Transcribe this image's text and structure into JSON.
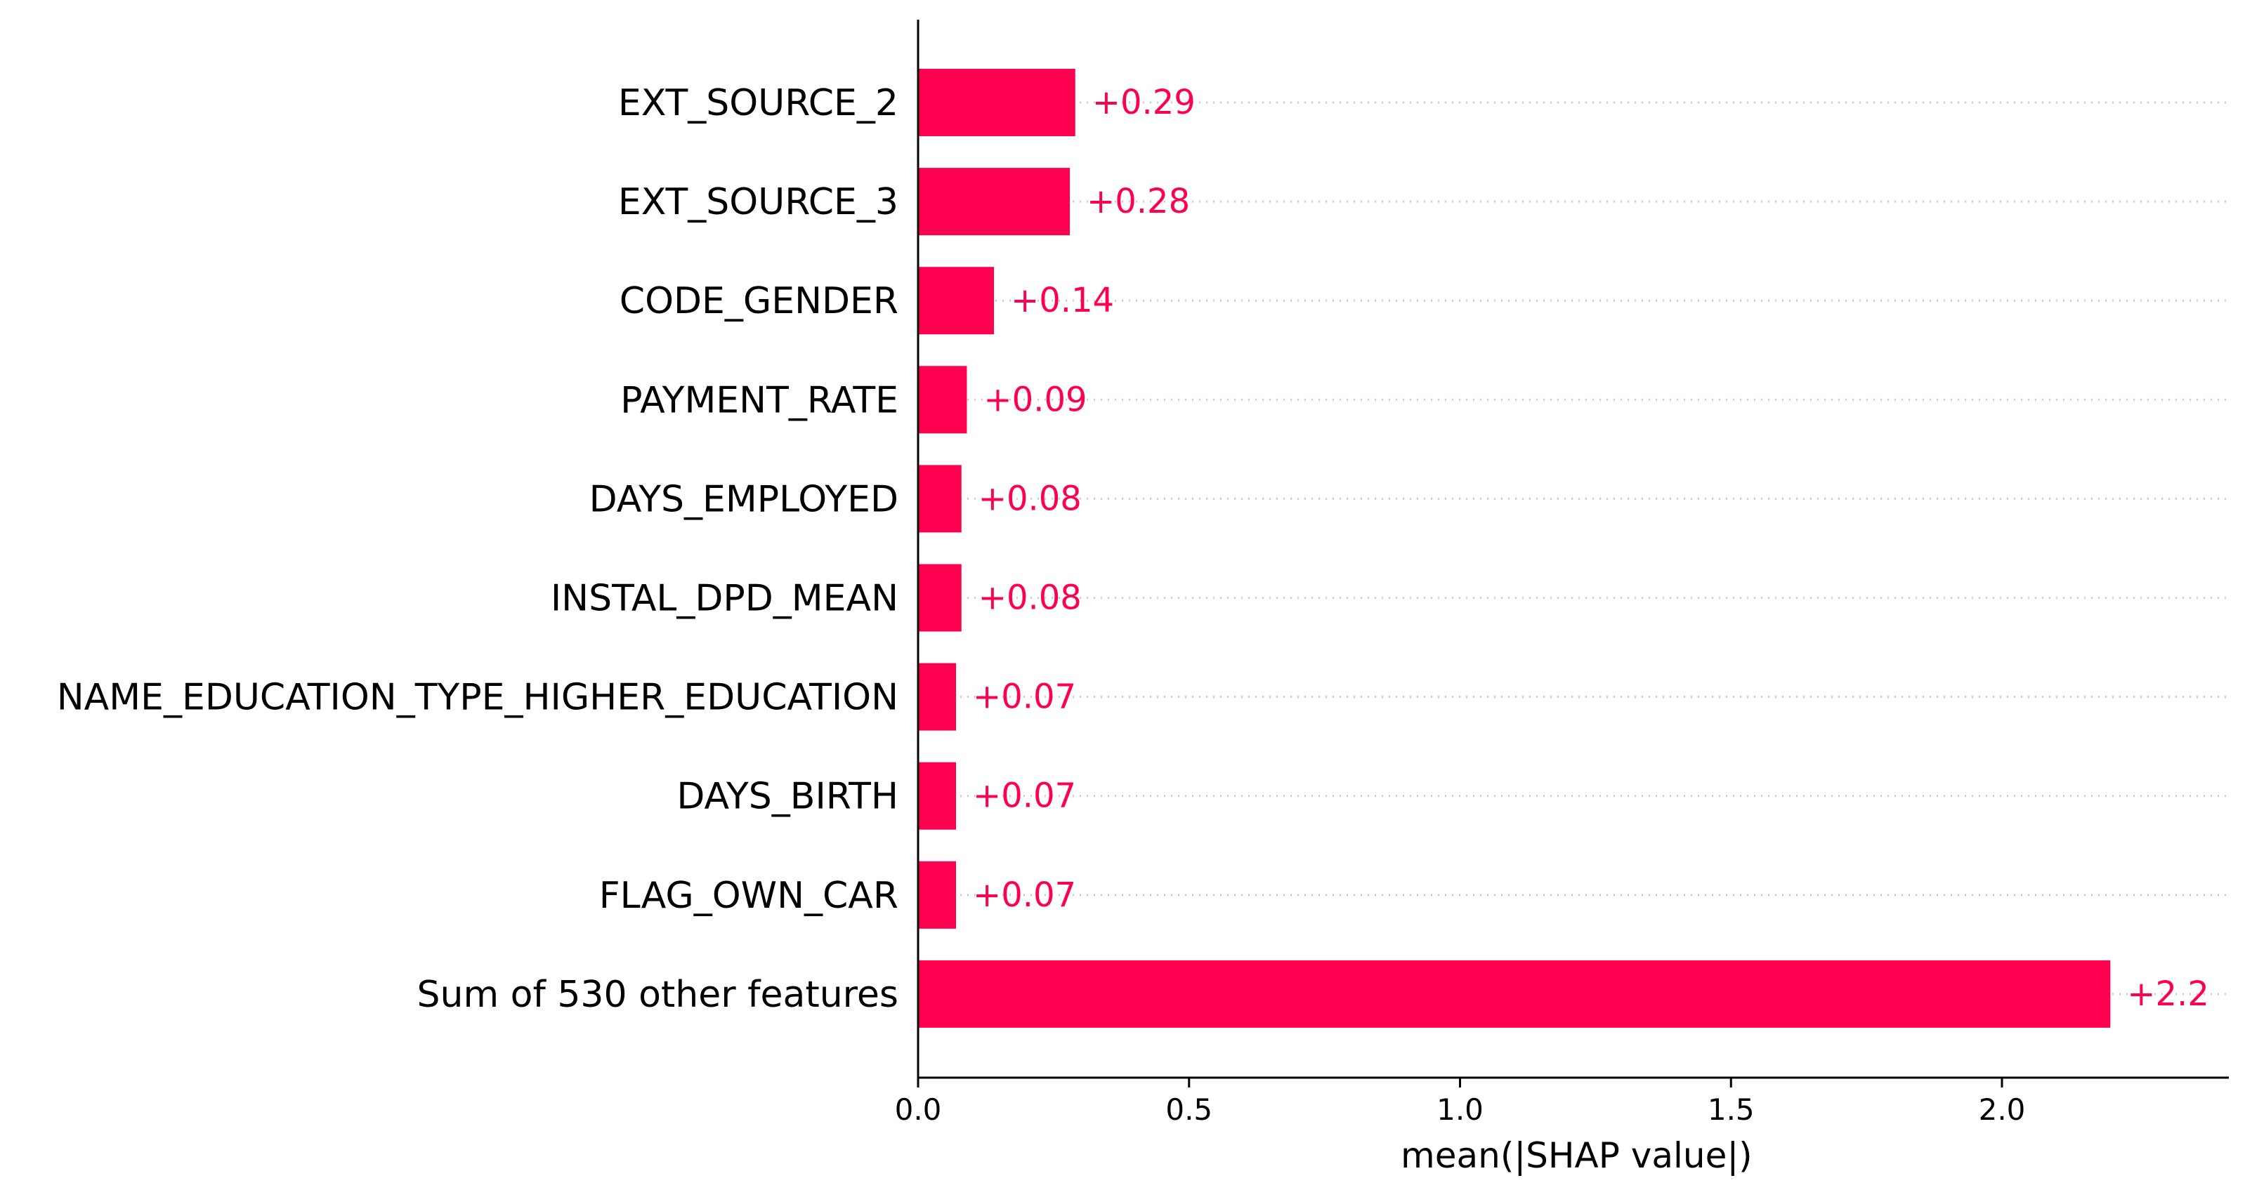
{
  "chart_data": {
    "type": "bar",
    "orientation": "horizontal",
    "categories": [
      "EXT_SOURCE_2",
      "EXT_SOURCE_3",
      "CODE_GENDER",
      "PAYMENT_RATE",
      "DAYS_EMPLOYED",
      "INSTAL_DPD_MEAN",
      "NAME_EDUCATION_TYPE_HIGHER_EDUCATION",
      "DAYS_BIRTH",
      "FLAG_OWN_CAR",
      "Sum of 530 other features"
    ],
    "values": [
      0.29,
      0.28,
      0.14,
      0.09,
      0.08,
      0.08,
      0.07,
      0.07,
      0.07,
      2.2
    ],
    "value_labels": [
      "+0.29",
      "+0.28",
      "+0.14",
      "+0.09",
      "+0.08",
      "+0.08",
      "+0.07",
      "+0.07",
      "+0.07",
      "+2.2"
    ],
    "xlabel": "mean(|SHAP value|)",
    "ylabel": "",
    "title": "",
    "xlim": [
      0,
      2.43
    ],
    "xticks": [
      0.0,
      0.5,
      1.0,
      1.5,
      2.0
    ],
    "xtick_labels": [
      "0.0",
      "0.5",
      "1.0",
      "1.5",
      "2.0"
    ],
    "grid": "dotted horizontal guide lines",
    "colors": {
      "bar": "#ff0051",
      "value_text": "#ff0051",
      "guide": "#cccccc",
      "axis": "#000000"
    }
  }
}
